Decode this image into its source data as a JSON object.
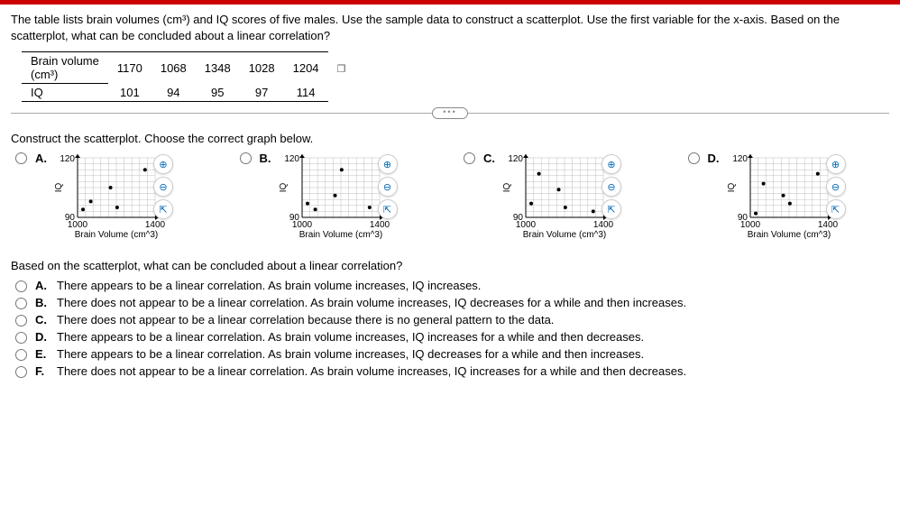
{
  "question": {
    "intro_a": "The table lists brain volumes ",
    "unit": "(cm³)",
    "intro_b": " and IQ scores of five males. Use the sample data to construct a scatterplot. Use the first variable for the x-axis. Based on the scatterplot, what can be concluded about a linear correlation?"
  },
  "table": {
    "row1_label": "Brain volume",
    "row1_unit": "(cm³)",
    "row2_label": "IQ",
    "values_bv": [
      "1170",
      "1068",
      "1348",
      "1028",
      "1204"
    ],
    "values_iq": [
      "101",
      "94",
      "95",
      "97",
      "114"
    ]
  },
  "prompt1": "Construct the scatterplot. Choose the correct graph below.",
  "letters": {
    "a": "A.",
    "b": "B.",
    "c": "C.",
    "d": "D."
  },
  "chart": {
    "xlim": [
      1000,
      1400
    ],
    "ylim": [
      90,
      120
    ],
    "ytick_hi": "120",
    "ytick_lo": "90",
    "xtick_lo": "1000",
    "xtick_hi": "1400",
    "xlabel": "Brain Volume (cm^3)",
    "ylabel": "IQ",
    "width": 120,
    "height": 100,
    "grid_color": "#bdbdbd",
    "axis_color": "#000000",
    "point_color": "#000000",
    "axis_fontsize": 10,
    "label_fontsize": 10,
    "sets": {
      "A": [
        [
          1170,
          105
        ],
        [
          1068,
          98
        ],
        [
          1348,
          114
        ],
        [
          1028,
          94
        ],
        [
          1204,
          95
        ]
      ],
      "B": [
        [
          1170,
          101
        ],
        [
          1068,
          94
        ],
        [
          1348,
          95
        ],
        [
          1028,
          97
        ],
        [
          1204,
          114
        ]
      ],
      "C": [
        [
          1170,
          104
        ],
        [
          1068,
          112
        ],
        [
          1348,
          93
        ],
        [
          1028,
          97
        ],
        [
          1204,
          95
        ]
      ],
      "D": [
        [
          1170,
          101
        ],
        [
          1068,
          107
        ],
        [
          1348,
          112
        ],
        [
          1028,
          92
        ],
        [
          1204,
          97
        ]
      ]
    }
  },
  "prompt2": "Based on the scatterplot, what can be concluded about a linear correlation?",
  "mc": {
    "a": "There appears to be a linear correlation. As brain volume increases, IQ increases.",
    "b": "There does not appear to be a linear correlation. As brain volume increases, IQ decreases for a while and then increases.",
    "c": "There does not appear to be a linear correlation because there is no general pattern to the data.",
    "d": "There appears to be a linear correlation. As brain volume increases, IQ increases for a while and then decreases.",
    "e": "There appears to be a linear correlation. As brain volume increases, IQ decreases for a while and then increases.",
    "f": "There does not appear to be a linear correlation. As brain volume increases, IQ increases for a while and then decreases."
  },
  "mc_letters": {
    "a": "A.",
    "b": "B.",
    "c": "C.",
    "d": "D.",
    "e": "E.",
    "f": "F."
  },
  "icons": {
    "zoom_in": "⊕",
    "zoom_out": "⊖",
    "expand": "⇱"
  }
}
